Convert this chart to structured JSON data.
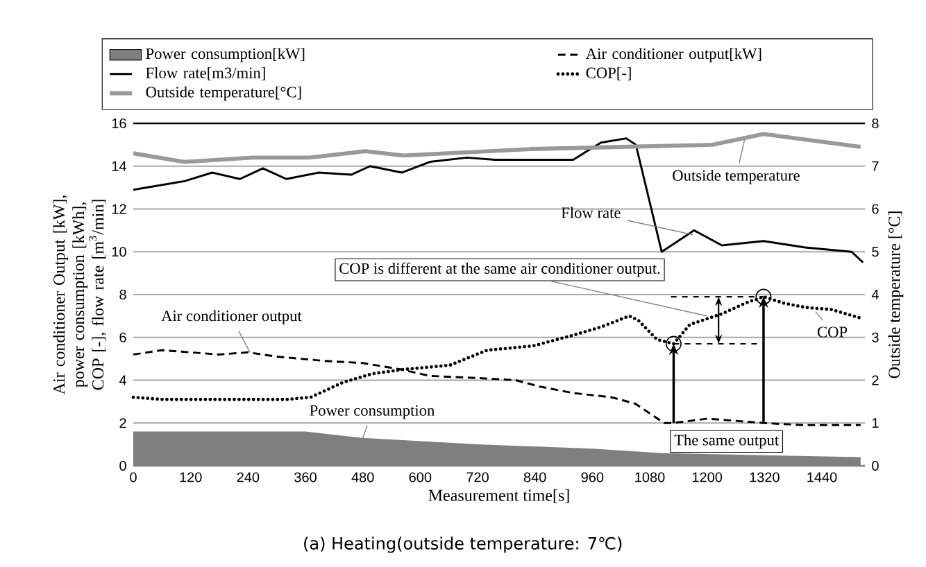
{
  "chart_data": {
    "type": "line",
    "xlabel": "Measurement time[s]",
    "ylabel": "Air conditioner Output [kW], power consumption [kWh], COP [-], flow rate [m$^{3}$/min]",
    "y2label": "Outside temperature [°C]",
    "xlim": [
      0,
      1530
    ],
    "xticks": [
      0,
      120,
      240,
      360,
      480,
      600,
      720,
      840,
      960,
      1080,
      1200,
      1320,
      1440
    ],
    "ylim": [
      0,
      16
    ],
    "yticks": [
      0,
      2,
      4,
      6,
      8,
      10,
      12,
      14,
      16
    ],
    "y2lim": [
      0,
      8
    ],
    "y2ticks": [
      0,
      1,
      2,
      3,
      4,
      5,
      6,
      7,
      8
    ],
    "grid": "y",
    "legend": "top",
    "marker": "none",
    "series": [
      {
        "name": "Power consumption[kW]",
        "type": "area",
        "color": "#7f7f7f",
        "x": [
          0,
          360,
          480,
          720,
          960,
          1100,
          1300,
          1521
        ],
        "values": [
          1.6,
          1.6,
          1.3,
          1.0,
          0.8,
          0.6,
          0.5,
          0.4
        ]
      },
      {
        "name": "Air conditioner output[kW]",
        "color": "#000000",
        "line_style": "dashed",
        "x": [
          0,
          60,
          120,
          180,
          240,
          300,
          400,
          480,
          560,
          620,
          720,
          800,
          850,
          920,
          960,
          1000,
          1050,
          1090,
          1110,
          1130,
          1200,
          1260,
          1318,
          1400,
          1521
        ],
        "values": [
          5.2,
          5.4,
          5.3,
          5.2,
          5.3,
          5.1,
          4.9,
          4.8,
          4.5,
          4.2,
          4.1,
          4.0,
          3.7,
          3.4,
          3.3,
          3.2,
          2.9,
          2.3,
          2.0,
          2.0,
          2.2,
          2.1,
          2.0,
          1.9,
          1.9
        ]
      },
      {
        "name": "Flow rate[m3/min]",
        "color": "#000000",
        "line_style": "solid",
        "x": [
          0,
          107,
          165,
          223,
          271,
          320,
          388,
          456,
          495,
          562,
          620,
          698,
          756,
          833,
          920,
          949,
          978,
          1031,
          1051,
          1105,
          1173,
          1231,
          1318,
          1405,
          1502,
          1526
        ],
        "values": [
          12.9,
          13.3,
          13.7,
          13.4,
          13.9,
          13.4,
          13.7,
          13.6,
          14.0,
          13.7,
          14.2,
          14.4,
          14.3,
          14.3,
          14.3,
          14.7,
          15.1,
          15.3,
          15.0,
          10.0,
          11.0,
          10.3,
          10.5,
          10.2,
          10.0,
          9.5
        ]
      },
      {
        "name": "COP[-]",
        "color": "#000000",
        "line_style": "dotted",
        "x": [
          0,
          60,
          120,
          240,
          320,
          371,
          439,
          500,
          565,
          662,
          740,
          836,
          920,
          980,
          1037,
          1056,
          1095,
          1130,
          1164,
          1231,
          1280,
          1318,
          1360,
          1405,
          1460,
          1521
        ],
        "values": [
          3.2,
          3.1,
          3.1,
          3.1,
          3.1,
          3.2,
          3.9,
          4.3,
          4.5,
          4.7,
          5.4,
          5.6,
          6.1,
          6.5,
          7.0,
          6.8,
          5.9,
          5.7,
          6.6,
          7.1,
          7.6,
          7.9,
          7.6,
          7.4,
          7.3,
          6.9
        ]
      },
      {
        "name": "Outside temperature[°C]",
        "color": "#999999",
        "line_style": "solid",
        "axis": "y2",
        "x": [
          0,
          107,
          250,
          369,
          485,
          565,
          833,
          1017,
          1211,
          1318,
          1521
        ],
        "values": [
          7.3,
          7.1,
          7.2,
          7.2,
          7.35,
          7.25,
          7.4,
          7.45,
          7.5,
          7.75,
          7.45
        ]
      }
    ],
    "annotations": [
      {
        "text": "Outside temperature",
        "x": 1280,
        "y": 15.4
      },
      {
        "text": "Flow rate",
        "x": 1170,
        "y": 10.8
      },
      {
        "text": "COP is different at the same air conditioner output.",
        "x": 1200,
        "y": 7.0
      },
      {
        "text": "Air conditioner output",
        "x": 244,
        "y": 5.3
      },
      {
        "text": "Power consumption",
        "x": 480,
        "y": 1.3
      },
      {
        "text": "COP",
        "x": 1427,
        "y": 7.2
      },
      {
        "text": "The same output",
        "x": 1318,
        "y": 2.0
      },
      "(a) Heating(outside temperature: 7℃)"
    ]
  }
}
